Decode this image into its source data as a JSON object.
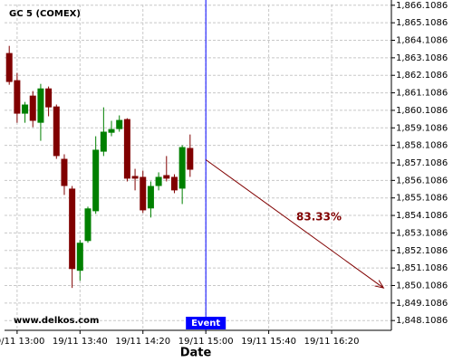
{
  "chart_data": {
    "type": "candlestick",
    "title": "GC 5 (COMEX)",
    "watermark": "www.delkos.com",
    "x_label": "Date",
    "x": [
      "19/11 12:55",
      "19/11 13:00",
      "19/11 13:05",
      "19/11 13:10",
      "19/11 13:15",
      "19/11 13:20",
      "19/11 13:25",
      "19/11 13:30",
      "19/11 13:35",
      "19/11 13:40",
      "19/11 13:45",
      "19/11 13:50",
      "19/11 13:55",
      "19/11 14:00",
      "19/11 14:05",
      "19/11 14:10",
      "19/11 14:15",
      "19/11 14:20",
      "19/11 14:25",
      "19/11 14:30",
      "19/11 14:35",
      "19/11 14:40",
      "19/11 14:45",
      "19/11 14:50"
    ],
    "open": [
      1863.38,
      1861.83,
      1859.92,
      1860.95,
      1859.4,
      1861.36,
      1860.33,
      1857.34,
      1855.64,
      1850.95,
      1852.65,
      1854.35,
      1857.75,
      1858.83,
      1859.04,
      1859.61,
      1856.36,
      1856.31,
      1854.51,
      1855.79,
      1856.41,
      1856.31,
      1855.64,
      1857.96
    ],
    "high": [
      1863.79,
      1862.24,
      1860.59,
      1861.21,
      1861.62,
      1861.47,
      1860.44,
      1857.6,
      1855.79,
      1852.7,
      1854.61,
      1858.63,
      1860.28,
      1859.51,
      1859.82,
      1859.66,
      1856.77,
      1856.67,
      1856.05,
      1856.57,
      1857.5,
      1856.46,
      1858.12,
      1858.73
    ],
    "low": [
      1861.57,
      1859.4,
      1859.4,
      1859.15,
      1858.37,
      1859.77,
      1857.34,
      1855.28,
      1849.97,
      1850.38,
      1852.55,
      1854.2,
      1857.5,
      1858.63,
      1858.89,
      1856.05,
      1855.54,
      1854.25,
      1853.99,
      1855.54,
      1856.05,
      1855.38,
      1854.76,
      1856.31
    ],
    "close": [
      1861.73,
      1859.92,
      1860.44,
      1859.51,
      1861.36,
      1860.28,
      1857.5,
      1855.79,
      1851.05,
      1852.55,
      1854.51,
      1857.86,
      1858.89,
      1859.04,
      1859.56,
      1856.21,
      1856.21,
      1854.4,
      1855.79,
      1856.31,
      1856.21,
      1855.54,
      1858.01,
      1856.72
    ],
    "up_color": "#008000",
    "down_color": "#800000",
    "xlim": [
      "19/11 12:52",
      "19/11 16:58"
    ],
    "xticks": [
      "19/11 13:00",
      "19/11 13:40",
      "19/11 14:20",
      "19/11 15:00",
      "19/11 15:40",
      "19/11 16:20"
    ],
    "ylim": [
      1847.55,
      1866.15
    ],
    "yticks": [
      {
        "value": 1848.1086,
        "label": "1,848.1086"
      },
      {
        "value": 1849.1086,
        "label": "1,849.1086"
      },
      {
        "value": 1850.1086,
        "label": "1,850.1086"
      },
      {
        "value": 1851.1086,
        "label": "1,851.1086"
      },
      {
        "value": 1852.1086,
        "label": "1,852.1086"
      },
      {
        "value": 1853.1086,
        "label": "1,853.1086"
      },
      {
        "value": 1854.1086,
        "label": "1,854.1086"
      },
      {
        "value": 1855.1086,
        "label": "1,855.1086"
      },
      {
        "value": 1856.1086,
        "label": "1,856.1086"
      },
      {
        "value": 1857.1086,
        "label": "1,857.1086"
      },
      {
        "value": 1858.1086,
        "label": "1,858.1086"
      },
      {
        "value": 1859.1086,
        "label": "1,859.1086"
      },
      {
        "value": 1860.1086,
        "label": "1,860.1086"
      },
      {
        "value": 1861.1086,
        "label": "1,861.1086"
      },
      {
        "value": 1862.1086,
        "label": "1,862.1086"
      },
      {
        "value": 1863.1086,
        "label": "1,863.1086"
      },
      {
        "value": 1864.1086,
        "label": "1,864.1086"
      },
      {
        "value": 1865.1086,
        "label": "1,865.1086"
      },
      {
        "value": 1866.1086,
        "label": "1,866.1086"
      }
    ],
    "grid": true,
    "event": {
      "x": "19/11 15:00",
      "label": "Event",
      "color": "#0000ff"
    },
    "forecast": {
      "start": {
        "x": "19/11 15:00",
        "y": 1857.29
      },
      "end": {
        "x": "19/11 16:53",
        "y": 1849.97
      },
      "label": "83.33%",
      "color": "#800000"
    }
  }
}
